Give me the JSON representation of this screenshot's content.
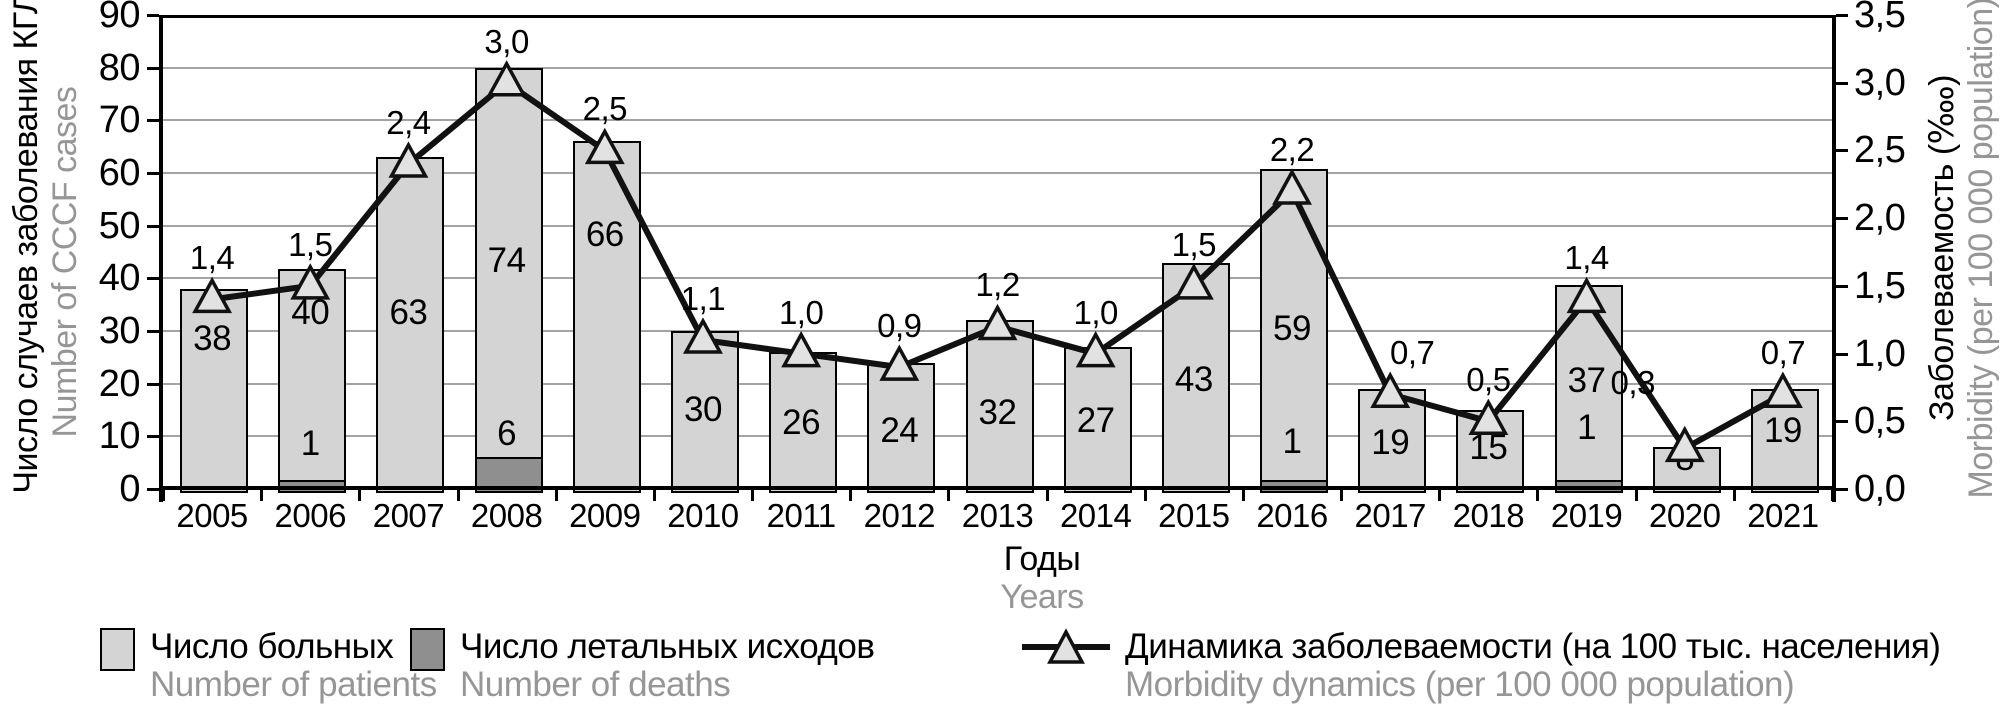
{
  "chart_data": {
    "type": "bar+line",
    "categories": [
      "2005",
      "2006",
      "2007",
      "2008",
      "2009",
      "2010",
      "2011",
      "2012",
      "2013",
      "2014",
      "2015",
      "2016",
      "2017",
      "2018",
      "2019",
      "2020",
      "2021"
    ],
    "series": [
      {
        "name": "Число больных / Number of patients",
        "type": "bar",
        "axis": "left",
        "values": [
          38,
          40,
          63,
          74,
          66,
          30,
          26,
          24,
          32,
          27,
          43,
          59,
          19,
          15,
          37,
          8,
          19
        ],
        "value_labels": [
          "38",
          "40",
          "63",
          "74",
          "66",
          "30",
          "26",
          "24",
          "32",
          "27",
          "43",
          "59",
          "19",
          "15",
          "37",
          "8",
          "19"
        ]
      },
      {
        "name": "Число летальных исходов / Number of deaths",
        "type": "bar",
        "axis": "left",
        "values": [
          0,
          1,
          0,
          6,
          0,
          0,
          0,
          0,
          0,
          0,
          0,
          1,
          0,
          0,
          1,
          0,
          0
        ],
        "value_labels": [
          "",
          "1",
          "",
          "6",
          "",
          "",
          "",
          "",
          "",
          "",
          "",
          "1",
          "",
          "",
          "1",
          "",
          ""
        ]
      },
      {
        "name": "Динамика заболеваемости (на 100 тыс. населения) / Morbidity dynamics (per 100 000 population)",
        "type": "line",
        "axis": "right",
        "values": [
          1.4,
          1.5,
          2.4,
          3.0,
          2.5,
          1.1,
          1.0,
          0.9,
          1.2,
          1.0,
          1.5,
          2.2,
          0.7,
          0.5,
          1.4,
          0.3,
          0.7
        ],
        "value_labels": [
          "1,4",
          "1,5",
          "2,4",
          "3,0",
          "2,5",
          "1,1",
          "1,0",
          "0,9",
          "1,2",
          "1,0",
          "1,5",
          "2,2",
          "0,7",
          "0,5",
          "1,4",
          "0,3",
          "0,7"
        ]
      }
    ],
    "axes": {
      "left": {
        "label_ru": "Число случаев заболевания КГЛ",
        "label_en": "Number of CCCF cases",
        "range": [
          0,
          90
        ],
        "tick_step": 10,
        "ticks": [
          "90",
          "80",
          "70",
          "60",
          "50",
          "40",
          "30",
          "20",
          "10",
          "0"
        ]
      },
      "right": {
        "label_ru": "Заболеваемость (‱)",
        "label_en": "Morbidity (per 100 000 population)",
        "range": [
          0,
          3.5
        ],
        "tick_step": 0.5,
        "ticks": [
          "3,5",
          "3,0",
          "2,5",
          "2,0",
          "1,5",
          "1,0",
          "0,5",
          "0,0"
        ]
      },
      "x": {
        "label_ru": "Годы",
        "label_en": "Years"
      }
    },
    "grid": "horizontal-left-axis",
    "legend_position": "bottom"
  },
  "legend": {
    "items": [
      {
        "marker": "light-box",
        "label_ru": "Число больных",
        "label_en": "Number of patients"
      },
      {
        "marker": "dark-box",
        "label_ru": "Число летальных исходов",
        "label_en": "Number of deaths"
      },
      {
        "marker": "line-triangle",
        "label_ru": "Динамика заболеваемости (на 100 тыс. населения)",
        "label_en": "Morbidity dynamics (per 100 000 population)"
      }
    ]
  },
  "colors": {
    "bar_light": "#d4d4d4",
    "bar_dark": "#8f8f8f",
    "bar_border": "#000000",
    "line": "#111111",
    "marker_fill": "#e2e2e2",
    "grid": "#a3a3a3",
    "text": "#000000",
    "muted": "#969696"
  }
}
